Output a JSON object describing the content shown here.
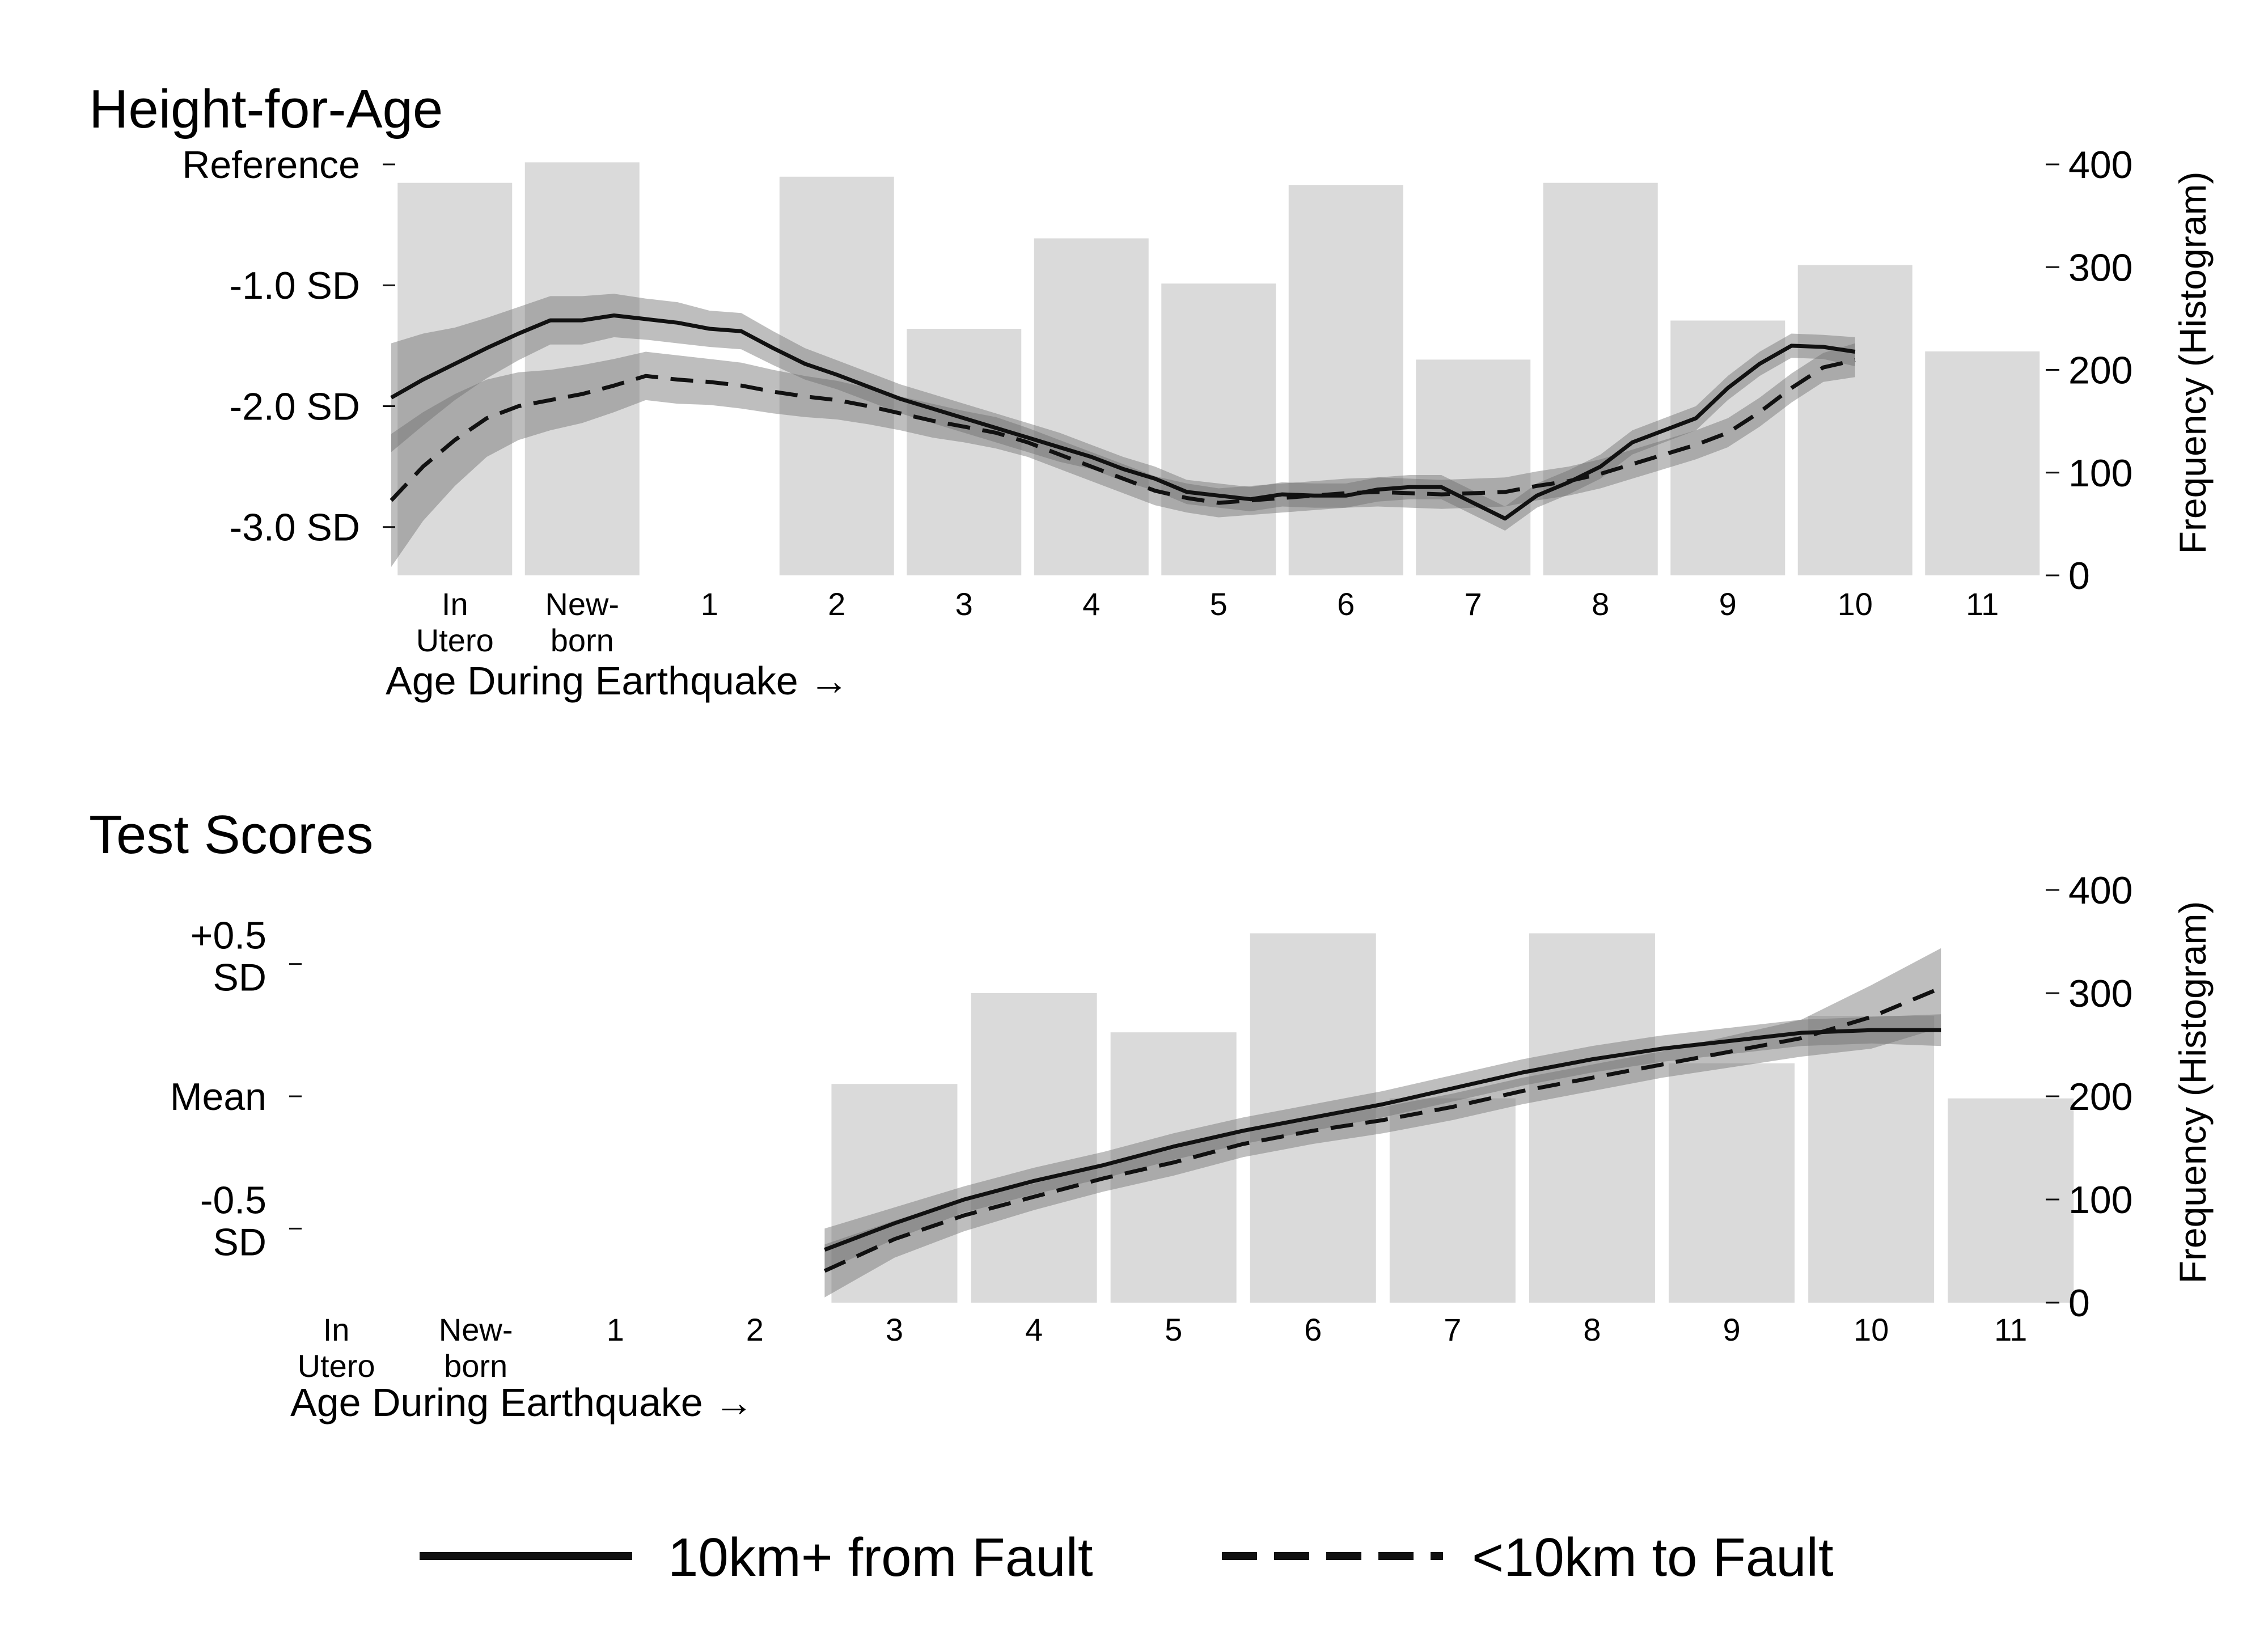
{
  "colors": {
    "bar": "#dadada",
    "band": "#6f6f6f",
    "line": "#111111",
    "background": "#ffffff"
  },
  "legend": {
    "solid_label": "10km+ from Fault",
    "dashed_label": "<10km to Fault"
  },
  "chart_data": [
    {
      "type": "bar+line",
      "title": "Height-for-Age",
      "xlabel": "Age During Earthquake →",
      "ylabel_right": "Frequency (Histogram)",
      "categories": [
        "In\nUtero",
        "New-\nborn",
        "1",
        "2",
        "3",
        "4",
        "5",
        "6",
        "7",
        "8",
        "9",
        "10",
        "11"
      ],
      "left_axis": {
        "ticks": [
          {
            "label": "Reference",
            "value": 0
          },
          {
            "label": "-1.0 SD",
            "value": -1
          },
          {
            "label": "-2.0 SD",
            "value": -2
          },
          {
            "label": "-3.0 SD",
            "value": -3
          }
        ],
        "range": [
          -3.4,
          0
        ]
      },
      "right_axis": {
        "ticks": [
          0,
          100,
          200,
          300,
          400
        ],
        "range": [
          0,
          400
        ]
      },
      "histogram": [
        382,
        402,
        388,
        240,
        328,
        284,
        380,
        210,
        382,
        248,
        302,
        218
      ],
      "histogram_positions": [
        0,
        1,
        3,
        4,
        5,
        6,
        7,
        8,
        9,
        10,
        11,
        12
      ],
      "series": [
        {
          "name": "10km+ from Fault",
          "style": "solid",
          "x": [
            0,
            0.25,
            0.5,
            0.75,
            1,
            1.25,
            1.5,
            1.75,
            2,
            2.25,
            2.5,
            2.75,
            3,
            3.25,
            3.5,
            3.75,
            4,
            4.25,
            4.5,
            4.75,
            5,
            5.25,
            5.5,
            5.75,
            6,
            6.25,
            6.5,
            6.75,
            7,
            7.25,
            7.5,
            7.75,
            8,
            8.25,
            8.5,
            8.75,
            9,
            9.25,
            9.5,
            9.75,
            10,
            10.25,
            10.5,
            10.75,
            11,
            11.25,
            11.5
          ],
          "y": [
            -1.93,
            -1.78,
            -1.65,
            -1.52,
            -1.4,
            -1.29,
            -1.29,
            -1.25,
            -1.28,
            -1.31,
            -1.36,
            -1.38,
            -1.52,
            -1.65,
            -1.74,
            -1.84,
            -1.94,
            -2.02,
            -2.1,
            -2.18,
            -2.26,
            -2.34,
            -2.42,
            -2.52,
            -2.6,
            -2.71,
            -2.74,
            -2.77,
            -2.73,
            -2.74,
            -2.74,
            -2.69,
            -2.67,
            -2.67,
            -2.8,
            -2.93,
            -2.74,
            -2.63,
            -2.5,
            -2.3,
            -2.2,
            -2.1,
            -1.85,
            -1.65,
            -1.5,
            -1.51,
            -1.55
          ],
          "ci_halfwidth": [
            0.45,
            0.38,
            0.3,
            0.25,
            0.22,
            0.2,
            0.2,
            0.18,
            0.17,
            0.17,
            0.15,
            0.15,
            0.14,
            0.13,
            0.12,
            0.12,
            0.12,
            0.12,
            0.12,
            0.12,
            0.12,
            0.12,
            0.1,
            0.1,
            0.1,
            0.1,
            0.1,
            0.1,
            0.1,
            0.1,
            0.1,
            0.1,
            0.1,
            0.1,
            0.1,
            0.1,
            0.1,
            0.1,
            0.1,
            0.1,
            0.1,
            0.1,
            0.1,
            0.1,
            0.1,
            0.1,
            0.12
          ]
        },
        {
          "name": "<10km to Fault",
          "style": "dashed",
          "x": [
            0,
            0.25,
            0.5,
            0.75,
            1,
            1.25,
            1.5,
            1.75,
            2,
            2.25,
            2.5,
            2.75,
            3,
            3.25,
            3.5,
            3.75,
            4,
            4.25,
            4.5,
            4.75,
            5,
            5.25,
            5.5,
            5.75,
            6,
            6.25,
            6.5,
            6.75,
            7,
            7.25,
            7.5,
            7.75,
            8,
            8.25,
            8.5,
            8.75,
            9,
            9.25,
            9.5,
            9.75,
            10,
            10.25,
            10.5,
            10.75,
            11,
            11.25,
            11.5
          ],
          "y": [
            -2.78,
            -2.5,
            -2.28,
            -2.1,
            -2.0,
            -1.95,
            -1.9,
            -1.83,
            -1.75,
            -1.78,
            -1.8,
            -1.83,
            -1.88,
            -1.92,
            -1.95,
            -2.0,
            -2.06,
            -2.12,
            -2.17,
            -2.22,
            -2.3,
            -2.4,
            -2.5,
            -2.6,
            -2.7,
            -2.76,
            -2.8,
            -2.78,
            -2.76,
            -2.74,
            -2.72,
            -2.71,
            -2.72,
            -2.73,
            -2.72,
            -2.71,
            -2.66,
            -2.62,
            -2.56,
            -2.48,
            -2.4,
            -2.32,
            -2.22,
            -2.05,
            -1.85,
            -1.68,
            -1.62
          ],
          "ci_halfwidth": [
            0.55,
            0.45,
            0.38,
            0.32,
            0.28,
            0.25,
            0.24,
            0.22,
            0.2,
            0.2,
            0.19,
            0.19,
            0.18,
            0.17,
            0.16,
            0.15,
            0.14,
            0.14,
            0.13,
            0.13,
            0.12,
            0.12,
            0.12,
            0.12,
            0.12,
            0.12,
            0.12,
            0.12,
            0.12,
            0.12,
            0.12,
            0.12,
            0.12,
            0.12,
            0.12,
            0.12,
            0.12,
            0.12,
            0.12,
            0.12,
            0.12,
            0.12,
            0.12,
            0.12,
            0.12,
            0.12,
            0.14
          ]
        }
      ]
    },
    {
      "type": "bar+line",
      "title": "Test Scores",
      "xlabel": "Age During Earthquake →",
      "ylabel_right": "Frequency (Histogram)",
      "categories": [
        "In\nUtero",
        "New-\nborn",
        "1",
        "2",
        "3",
        "4",
        "5",
        "6",
        "7",
        "8",
        "9",
        "10",
        "11"
      ],
      "left_axis": {
        "ticks": [
          {
            "label": "+0.5\nSD",
            "value": 0.5
          },
          {
            "label": "Mean",
            "value": 0
          },
          {
            "label": "-0.5\nSD",
            "value": -0.5
          }
        ],
        "range": [
          -0.78,
          0.78
        ]
      },
      "right_axis": {
        "ticks": [
          0,
          100,
          200,
          300,
          400
        ],
        "range": [
          0,
          400
        ]
      },
      "histogram": [
        212,
        300,
        262,
        358,
        198,
        358,
        232,
        278,
        198
      ],
      "histogram_positions": [
        4,
        5,
        6,
        7,
        8,
        9,
        10,
        11,
        12
      ],
      "series": [
        {
          "name": "10km+ from Fault",
          "style": "solid",
          "x": [
            4,
            4.5,
            5,
            5.5,
            6,
            6.5,
            7,
            7.5,
            8,
            8.5,
            9,
            9.5,
            10,
            10.5,
            11,
            11.5,
            12
          ],
          "y": [
            -0.58,
            -0.48,
            -0.39,
            -0.32,
            -0.26,
            -0.19,
            -0.13,
            -0.08,
            -0.03,
            0.03,
            0.09,
            0.14,
            0.18,
            0.21,
            0.24,
            0.25,
            0.25
          ],
          "ci_halfwidth": [
            0.08,
            0.06,
            0.05,
            0.05,
            0.05,
            0.05,
            0.05,
            0.05,
            0.05,
            0.05,
            0.05,
            0.05,
            0.05,
            0.05,
            0.05,
            0.05,
            0.06
          ]
        },
        {
          "name": "<10km to Fault",
          "style": "dashed",
          "x": [
            4,
            4.5,
            5,
            5.5,
            6,
            6.5,
            7,
            7.5,
            8,
            8.5,
            9,
            9.5,
            10,
            10.5,
            11,
            11.5,
            12
          ],
          "y": [
            -0.66,
            -0.54,
            -0.45,
            -0.38,
            -0.31,
            -0.25,
            -0.18,
            -0.13,
            -0.09,
            -0.04,
            0.02,
            0.07,
            0.12,
            0.17,
            0.22,
            0.3,
            0.41
          ],
          "ci_halfwidth": [
            0.1,
            0.07,
            0.06,
            0.05,
            0.05,
            0.05,
            0.05,
            0.05,
            0.05,
            0.05,
            0.05,
            0.05,
            0.05,
            0.06,
            0.07,
            0.12,
            0.15
          ]
        }
      ]
    }
  ]
}
